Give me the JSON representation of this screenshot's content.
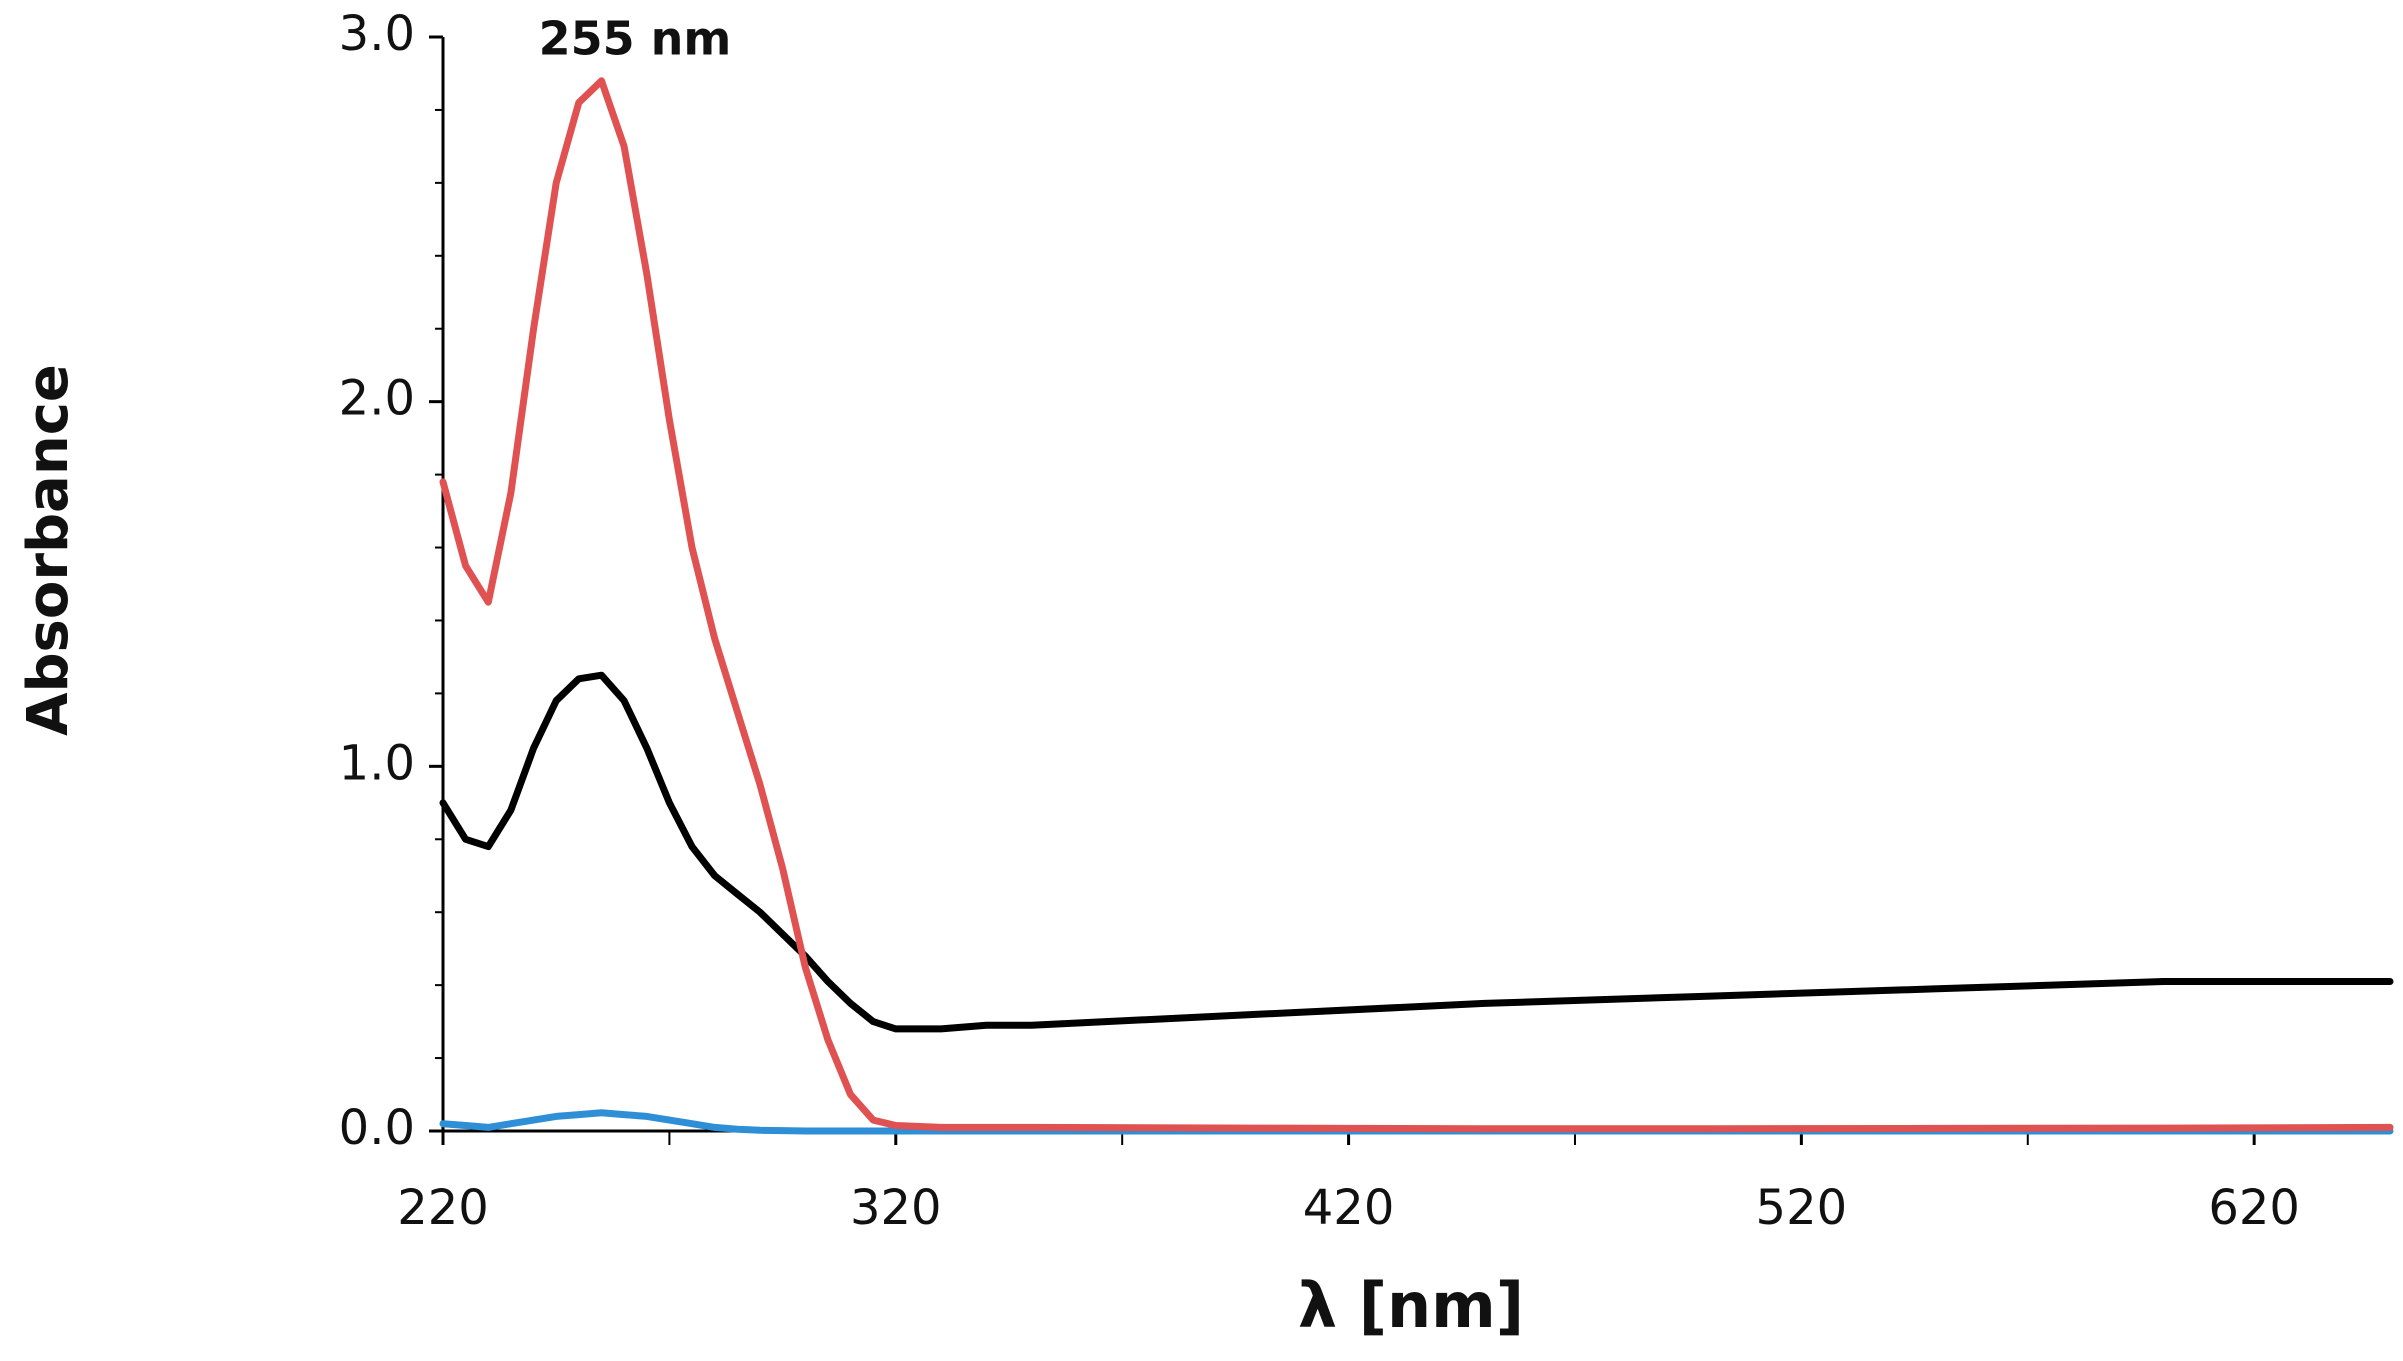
{
  "chart_data": {
    "type": "line",
    "x_label": "λ [nm]",
    "y_label": "Absorbance",
    "annotation": "255 nm",
    "x": [
      220,
      225,
      230,
      235,
      240,
      245,
      250,
      255,
      260,
      265,
      270,
      275,
      280,
      285,
      290,
      295,
      300,
      305,
      310,
      315,
      320,
      330,
      340,
      350,
      400,
      450,
      500,
      550,
      600,
      650
    ],
    "series": [
      {
        "color": "#e05252",
        "values": [
          1.78,
          1.55,
          1.45,
          1.75,
          2.2,
          2.6,
          2.82,
          2.88,
          2.7,
          2.35,
          1.95,
          1.6,
          1.35,
          1.15,
          0.95,
          0.72,
          0.45,
          0.25,
          0.1,
          0.03,
          0.015,
          0.01,
          0.01,
          0.01,
          0.008,
          0.006,
          0.006,
          0.007,
          0.008,
          0.01
        ]
      },
      {
        "color": "#000000",
        "values": [
          0.9,
          0.8,
          0.78,
          0.88,
          1.05,
          1.18,
          1.24,
          1.25,
          1.18,
          1.05,
          0.9,
          0.78,
          0.7,
          0.65,
          0.6,
          0.54,
          0.48,
          0.41,
          0.35,
          0.3,
          0.28,
          0.28,
          0.29,
          0.29,
          0.32,
          0.35,
          0.37,
          0.39,
          0.41,
          0.41
        ]
      },
      {
        "color": "#2e8fd6",
        "values": [
          0.02,
          0.015,
          0.01,
          0.02,
          0.03,
          0.04,
          0.045,
          0.05,
          0.045,
          0.04,
          0.03,
          0.02,
          0.01,
          0.005,
          0.002,
          0.001,
          0,
          0,
          0,
          0,
          0,
          0,
          0,
          0,
          0,
          0,
          0,
          0,
          0,
          0
        ]
      }
    ],
    "xlim": [
      220,
      650
    ],
    "xticks": [
      220,
      320,
      420,
      520,
      620
    ],
    "x_minor_ticks": [
      270,
      370,
      470,
      570
    ],
    "ylim": [
      0,
      3
    ],
    "yticks": [
      {
        "value": 0,
        "label": "0.0"
      },
      {
        "value": 1,
        "label": "1.0"
      },
      {
        "value": 2,
        "label": "2.0"
      },
      {
        "value": 3,
        "label": "3.0"
      }
    ],
    "y_minor_ticks": [
      0.2,
      0.4,
      0.6,
      0.8,
      1.2,
      1.4,
      1.6,
      1.8,
      2.2,
      2.4,
      2.6,
      2.8
    ]
  }
}
